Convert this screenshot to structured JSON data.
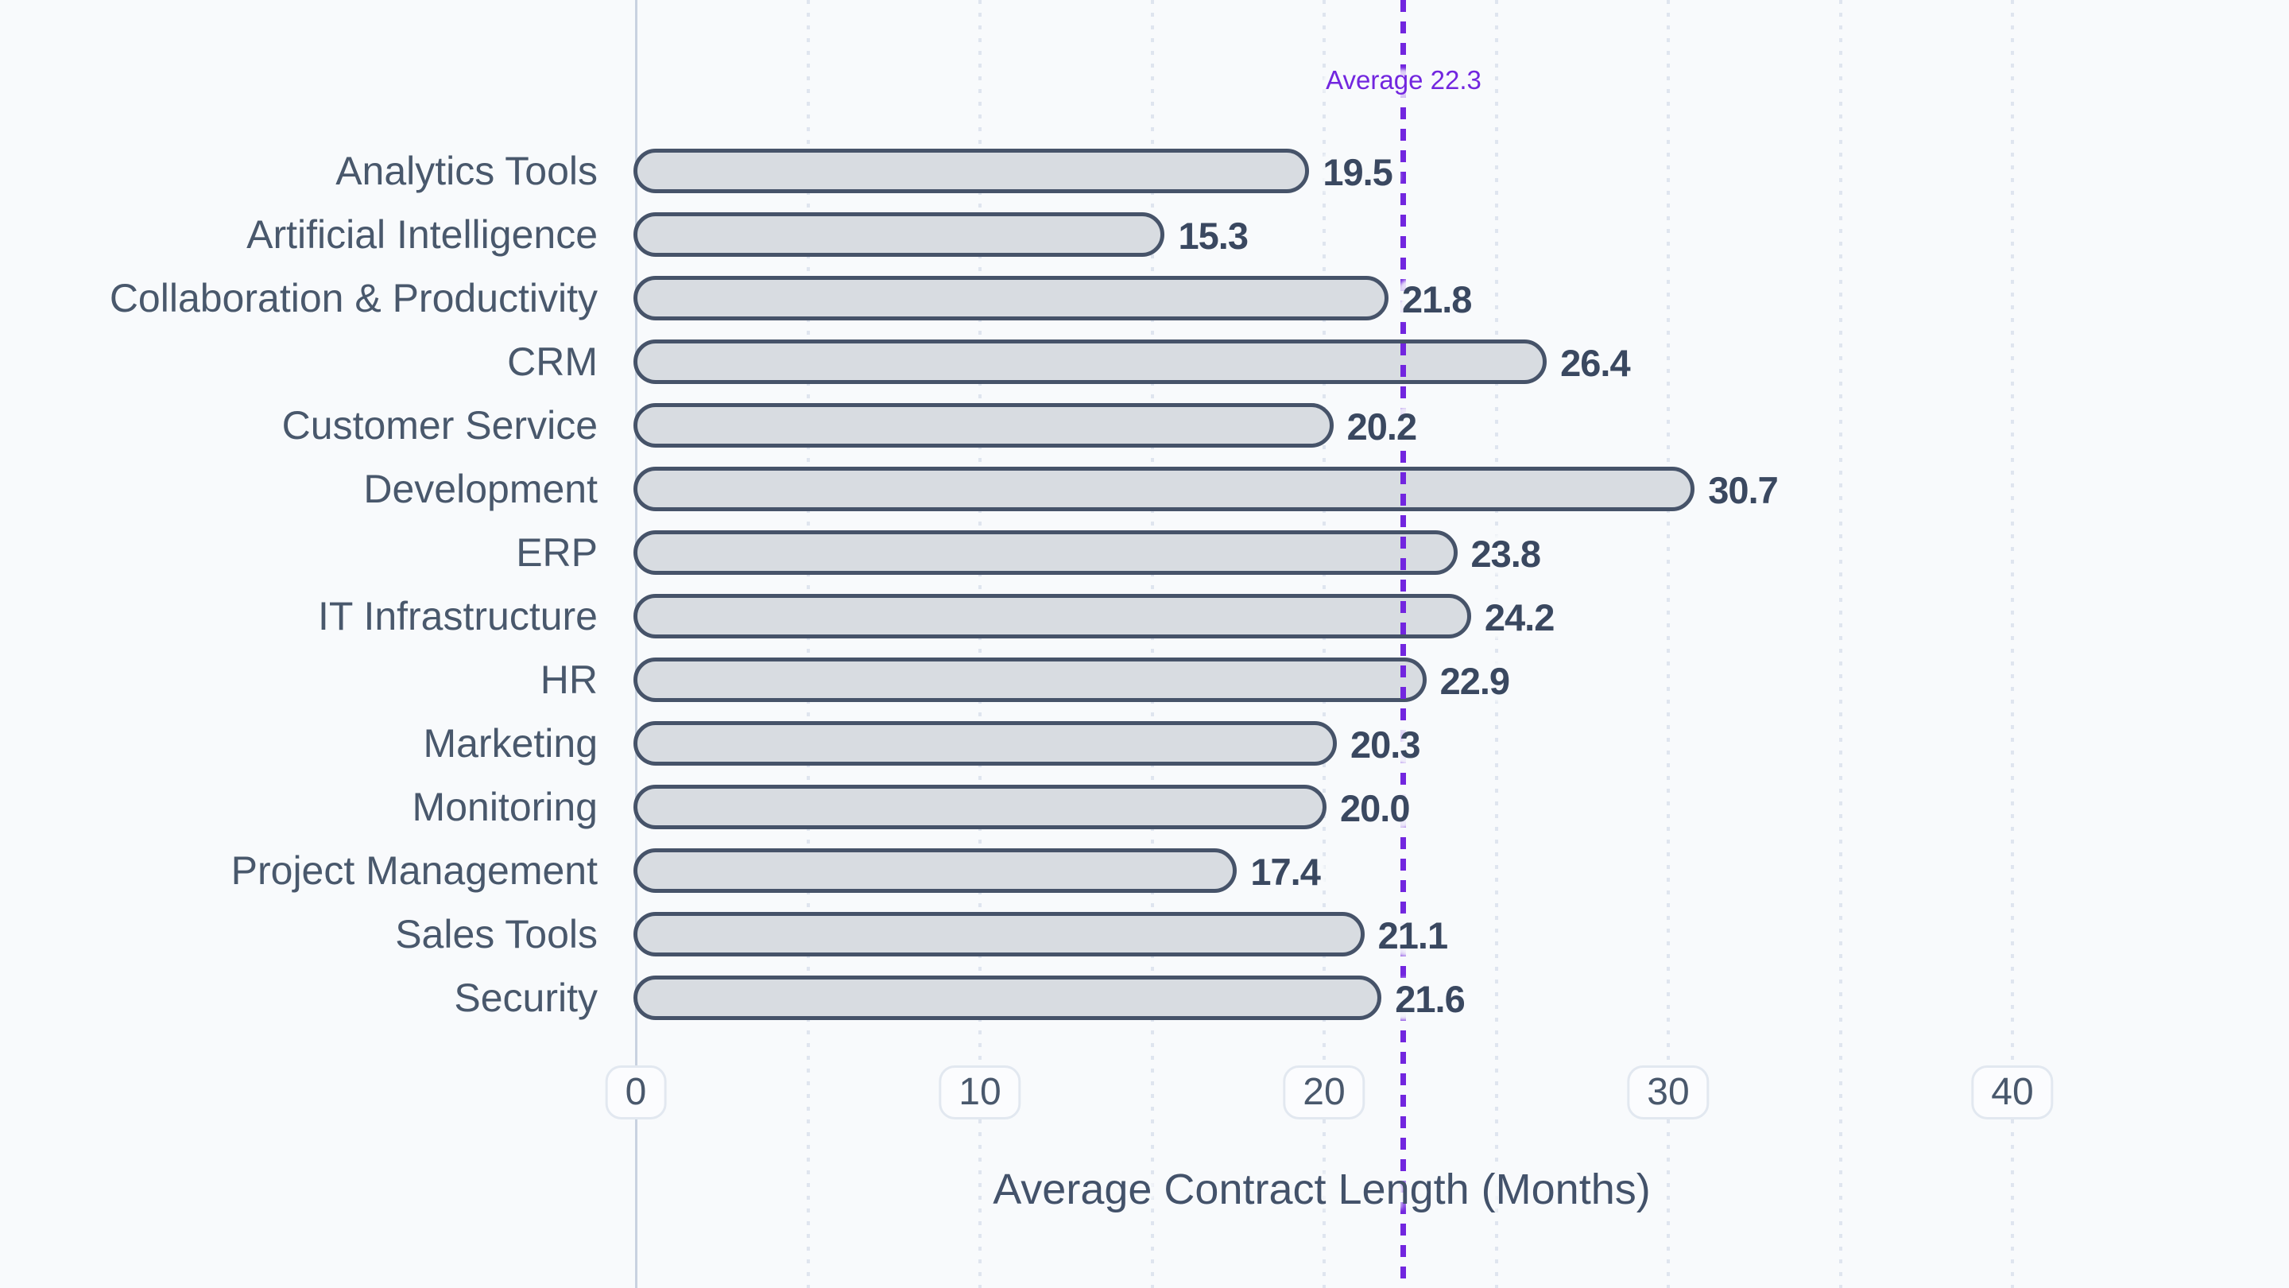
{
  "chart_data": {
    "type": "bar",
    "orientation": "horizontal",
    "xlabel": "Average Contract Length (Months)",
    "categories": [
      "Analytics Tools",
      "Artificial Intelligence",
      "Collaboration & Productivity",
      "CRM",
      "Customer Service",
      "Development",
      "ERP",
      "IT Infrastructure",
      "HR",
      "Marketing",
      "Monitoring",
      "Project Management",
      "Sales Tools",
      "Security"
    ],
    "values": [
      19.5,
      15.3,
      21.8,
      26.4,
      20.2,
      30.7,
      23.8,
      24.2,
      22.9,
      20.3,
      20.0,
      17.4,
      21.1,
      21.6
    ],
    "value_label_decimals": 1,
    "xlim": [
      0,
      40
    ],
    "xticks": [
      0,
      10,
      20,
      30,
      40
    ],
    "minor_grid_step": 5,
    "grid": "vertical-dotted",
    "average_line": {
      "value": 22.3,
      "label": "Average 22.3"
    }
  },
  "colors": {
    "background": "#f8fafc",
    "bar_fill": "#d8dce1",
    "bar_border": "#465369",
    "value_label": "#3a4860",
    "category_label": "#49586c",
    "tick_text": "#49586c",
    "tick_border": "#e2e8f0",
    "tick_bg": "#fbfcfe",
    "axis_line": "#c8d2e0",
    "gridline": "#dfe5ef",
    "average_line": "#7226df",
    "axis_title": "#43526a"
  }
}
